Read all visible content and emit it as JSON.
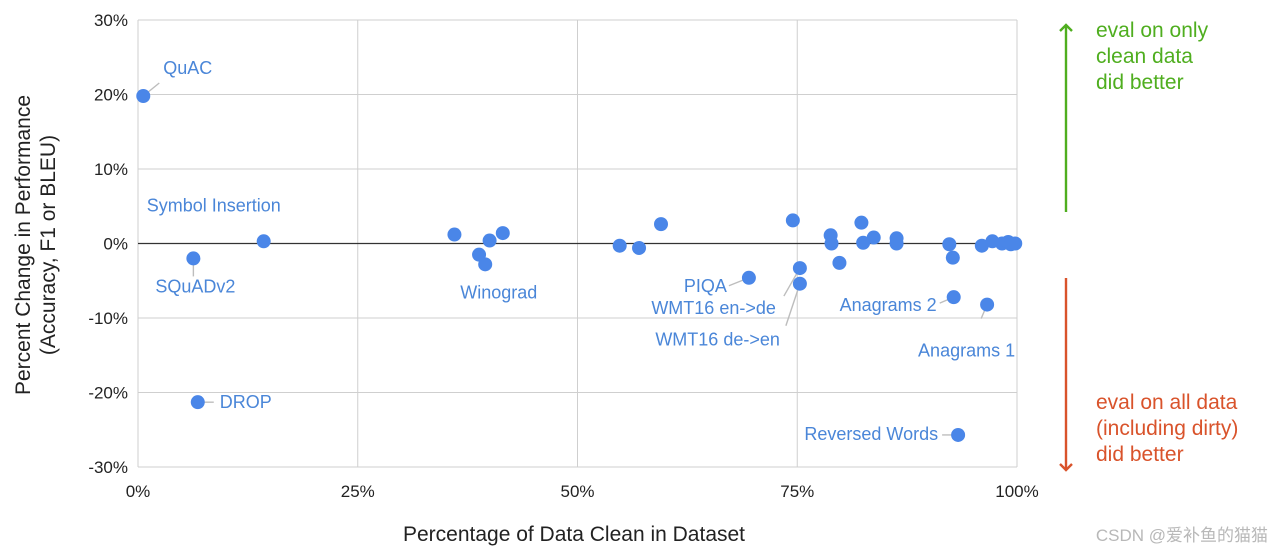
{
  "chart_data": {
    "type": "scatter",
    "title": "",
    "xlabel": "Percentage of Data Clean in Dataset",
    "ylabel": [
      "Percent Change in Performance",
      "(Accuracy, F1 or BLEU)"
    ],
    "xlim": [
      0,
      100
    ],
    "ylim": [
      -30,
      30
    ],
    "grid": true,
    "x_ticks": [
      {
        "value": 0,
        "label": "0%"
      },
      {
        "value": 25,
        "label": "25%"
      },
      {
        "value": 50,
        "label": "50%"
      },
      {
        "value": 75,
        "label": "75%"
      },
      {
        "value": 100,
        "label": "100%"
      }
    ],
    "y_ticks": [
      {
        "value": 30,
        "label": "30%"
      },
      {
        "value": 20,
        "label": "20%"
      },
      {
        "value": 10,
        "label": "10%"
      },
      {
        "value": 0,
        "label": "0%"
      },
      {
        "value": -10,
        "label": "-10%"
      },
      {
        "value": -20,
        "label": "-20%"
      },
      {
        "value": -30,
        "label": "-30%"
      }
    ],
    "point_color": "#4a86e8",
    "points": [
      {
        "x": 0.6,
        "y": 19.8,
        "label": "QuAC"
      },
      {
        "x": 14.3,
        "y": 0.3,
        "label": "Symbol Insertion"
      },
      {
        "x": 6.3,
        "y": -2.0,
        "label": "SQuADv2"
      },
      {
        "x": 6.8,
        "y": -21.3,
        "label": "DROP"
      },
      {
        "x": 36.0,
        "y": 1.2
      },
      {
        "x": 38.8,
        "y": -1.5
      },
      {
        "x": 39.5,
        "y": -2.8,
        "label": "Winograd"
      },
      {
        "x": 40.0,
        "y": 0.4
      },
      {
        "x": 41.5,
        "y": 1.4
      },
      {
        "x": 54.8,
        "y": -0.3
      },
      {
        "x": 57.0,
        "y": -0.6
      },
      {
        "x": 59.5,
        "y": 2.6
      },
      {
        "x": 69.5,
        "y": -4.6,
        "label": "PIQA"
      },
      {
        "x": 74.5,
        "y": 3.1
      },
      {
        "x": 75.3,
        "y": -3.3,
        "label": "WMT16 en->de"
      },
      {
        "x": 75.3,
        "y": -5.4,
        "label": "WMT16 de->en"
      },
      {
        "x": 78.8,
        "y": 1.1
      },
      {
        "x": 78.9,
        "y": 0.0
      },
      {
        "x": 79.8,
        "y": -2.6
      },
      {
        "x": 82.3,
        "y": 2.8
      },
      {
        "x": 82.5,
        "y": 0.1
      },
      {
        "x": 83.7,
        "y": 0.8
      },
      {
        "x": 86.3,
        "y": 0.7
      },
      {
        "x": 86.3,
        "y": 0.0
      },
      {
        "x": 92.3,
        "y": -0.1
      },
      {
        "x": 92.7,
        "y": -1.9
      },
      {
        "x": 92.8,
        "y": -7.2,
        "label": "Anagrams 2"
      },
      {
        "x": 93.3,
        "y": -25.7,
        "label": "Reversed Words"
      },
      {
        "x": 96.0,
        "y": -0.3
      },
      {
        "x": 96.6,
        "y": -8.2,
        "label": "Anagrams 1"
      },
      {
        "x": 97.2,
        "y": 0.3
      },
      {
        "x": 98.3,
        "y": 0.0
      },
      {
        "x": 99.0,
        "y": 0.2
      },
      {
        "x": 99.3,
        "y": -0.1
      },
      {
        "x": 99.8,
        "y": 0.0
      }
    ],
    "annotations": [
      {
        "lines": [
          "eval on only",
          "clean data",
          "did better"
        ],
        "color": "#4fae1f",
        "arrow": "up"
      },
      {
        "lines": [
          "eval on all data",
          "(including dirty)",
          "did better"
        ],
        "color": "#d9532b",
        "arrow": "down"
      }
    ]
  },
  "watermark": "CSDN @爱补鱼的猫猫"
}
